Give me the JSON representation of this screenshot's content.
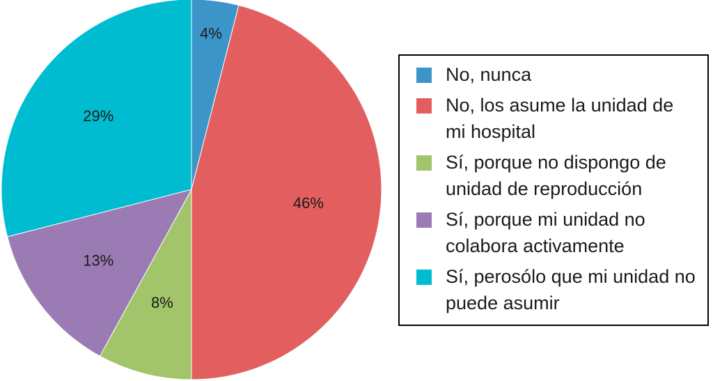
{
  "chart_data": {
    "type": "pie",
    "slices": [
      {
        "label": "No, nunca",
        "value": 4,
        "value_label": "4%",
        "color": "#3b95c9"
      },
      {
        "label": "No, los asume la unidad de mi hospital",
        "value": 46,
        "value_label": "46%",
        "color": "#e35f5f"
      },
      {
        "label": "Sí, porque no dispongo de unidad de reproducción",
        "value": 8,
        "value_label": "8%",
        "color": "#a2c46a"
      },
      {
        "label": "Sí, porque mi unidad no colabora activamente",
        "value": 13,
        "value_label": "13%",
        "color": "#9b7bb4"
      },
      {
        "label": "Sí, perosólo que mi unidad no puede asumir",
        "value": 29,
        "value_label": "29%",
        "color": "#00bcd1"
      }
    ],
    "start_angle": "top",
    "direction": "clockwise",
    "legend_position": "right"
  }
}
